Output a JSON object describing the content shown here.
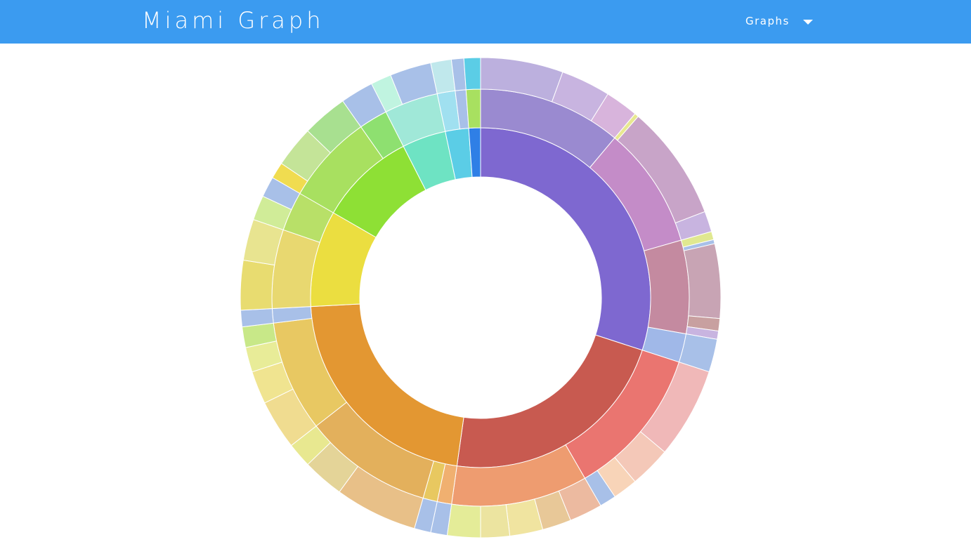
{
  "header": {
    "title": "Miami Graph",
    "menu": "Graphs"
  },
  "chart_data": {
    "type": "sunburst",
    "children": [
      {
        "value": 108,
        "color": "#7e68d0",
        "children": [
          {
            "value": 40,
            "color": "#9a8ad0",
            "children": [
              {
                "value": 20,
                "color": "#bcb0de"
              },
              {
                "value": 12,
                "color": "#c8b4e0"
              },
              {
                "value": 8,
                "color": "#d8b4dc"
              }
            ]
          },
          {
            "value": 34,
            "color": "#c48cc8",
            "children": [
              {
                "value": 1,
                "color": "#e8e890"
              },
              {
                "value": 28,
                "color": "#c8a4c8"
              },
              {
                "value": 5,
                "color": "#c8b4e0"
              }
            ]
          },
          {
            "value": 26,
            "color": "#c48aa0",
            "children": [
              {
                "value": 2,
                "color": "#e0e890"
              },
              {
                "value": 1,
                "color": "#a8c0e8"
              },
              {
                "value": 18,
                "color": "#c8a4b4"
              },
              {
                "value": 3,
                "color": "#c8a0a0"
              },
              {
                "value": 2,
                "color": "#c8b4e0"
              }
            ]
          },
          {
            "value": 8,
            "color": "#a0b8e8",
            "children": [
              {
                "value": 8,
                "color": "#a8c0e8"
              }
            ]
          }
        ]
      },
      {
        "value": 80,
        "color": "#c85a50",
        "children": [
          {
            "value": 42,
            "color": "#ea7570",
            "children": [
              {
                "value": 22,
                "color": "#f0b8b8"
              },
              {
                "value": 10,
                "color": "#f4c8b8"
              },
              {
                "value": 6,
                "color": "#f8d4b8"
              },
              {
                "value": 4,
                "color": "#a8c0e8"
              }
            ]
          },
          {
            "value": 38,
            "color": "#ee9c70",
            "children": [
              {
                "value": 8,
                "color": "#ecbaa0"
              },
              {
                "value": 7,
                "color": "#e8c898"
              },
              {
                "value": 8,
                "color": "#f0e4a0"
              },
              {
                "value": 7,
                "color": "#ece4a0"
              },
              {
                "value": 8,
                "color": "#e4ec98"
              }
            ]
          }
        ]
      },
      {
        "value": 79,
        "color": "#e39732",
        "children": [
          {
            "value": 4,
            "color": "#f0b070",
            "children": [
              {
                "value": 4,
                "color": "#a8c0e8"
              }
            ]
          },
          {
            "value": 4,
            "color": "#e8c860",
            "children": [
              {
                "value": 4,
                "color": "#a8c0e8"
              }
            ]
          },
          {
            "value": 36,
            "color": "#e3b05c",
            "children": [
              {
                "value": 20,
                "color": "#e8c088"
              },
              {
                "value": 10,
                "color": "#e4d498"
              },
              {
                "value": 6,
                "color": "#e8e890"
              }
            ]
          },
          {
            "value": 31,
            "color": "#e8c862",
            "children": [
              {
                "value": 12,
                "color": "#f0dc90"
              },
              {
                "value": 8,
                "color": "#f0e490"
              },
              {
                "value": 6,
                "color": "#e8ec98"
              },
              {
                "value": 5,
                "color": "#c8e888"
              }
            ]
          },
          {
            "value": 4,
            "color": "#a8c0e8",
            "children": [
              {
                "value": 4,
                "color": "#a8c0e8"
              }
            ]
          }
        ]
      },
      {
        "value": 33,
        "color": "#ebde40",
        "children": [
          {
            "value": 22,
            "color": "#e8d870",
            "children": [
              {
                "value": 12,
                "color": "#e8dc70"
              },
              {
                "value": 10,
                "color": "#e8e490"
              }
            ]
          },
          {
            "value": 11,
            "color": "#b8e068",
            "children": [
              {
                "value": 6,
                "color": "#d0ec98"
              },
              {
                "value": 5,
                "color": "#a8c0e8"
              }
            ]
          }
        ]
      },
      {
        "value": 33,
        "color": "#8ee035",
        "children": [
          {
            "value": 25,
            "color": "#a8e060",
            "children": [
              {
                "value": 4,
                "color": "#f0dc50"
              },
              {
                "value": 10,
                "color": "#c4e498"
              },
              {
                "value": 11,
                "color": "#a8e090"
              }
            ]
          },
          {
            "value": 8,
            "color": "#8ee070",
            "children": [
              {
                "value": 8,
                "color": "#a8c0e8"
              }
            ]
          }
        ]
      },
      {
        "value": 15,
        "color": "#6ee3c3",
        "children": [
          {
            "value": 15,
            "color": "#a0e8d8",
            "children": [
              {
                "value": 5,
                "color": "#c0f4e0"
              },
              {
                "value": 10,
                "color": "#a8c0e8"
              }
            ]
          }
        ]
      },
      {
        "value": 8,
        "color": "#5bcde6",
        "children": [
          {
            "value": 5,
            "color": "#a0e0f0",
            "children": [
              {
                "value": 5,
                "color": "#c0e8ec"
              }
            ]
          },
          {
            "value": 3,
            "color": "#a8c0e8",
            "children": [
              {
                "value": 3,
                "color": "#a8c0e8"
              }
            ]
          }
        ]
      },
      {
        "value": 4,
        "color": "#2f7fe6",
        "children": [
          {
            "value": 4,
            "color": "#a8e060",
            "children": [
              {
                "value": 4,
                "color": "#5bcde6"
              }
            ]
          }
        ]
      }
    ]
  }
}
